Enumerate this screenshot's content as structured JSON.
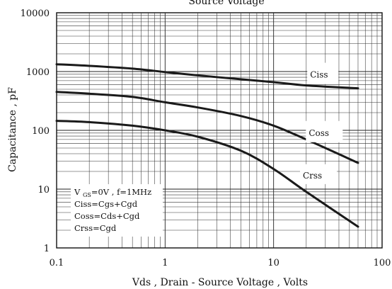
{
  "chart_data": {
    "type": "line",
    "title": "Source Voltage",
    "xlabel": "Vds , Drain - Source Voltage , Volts",
    "ylabel": "Capacitance , pF",
    "xscale": "log",
    "yscale": "log",
    "xlim": [
      0.1,
      100
    ],
    "ylim": [
      1,
      10000
    ],
    "grid": true,
    "x_tick_labels": [
      "0.1",
      "1",
      "10",
      "100"
    ],
    "y_tick_labels": [
      "1",
      "10",
      "100",
      "1000",
      "10000"
    ],
    "series": [
      {
        "name": "Ciss",
        "x": [
          0.1,
          0.2,
          0.5,
          1,
          2,
          5,
          10,
          20,
          60
        ],
        "values": [
          1330,
          1250,
          1120,
          980,
          860,
          740,
          660,
          580,
          520
        ]
      },
      {
        "name": "Coss",
        "x": [
          0.1,
          0.2,
          0.5,
          1,
          2,
          5,
          10,
          20,
          60
        ],
        "values": [
          450,
          420,
          370,
          300,
          245,
          175,
          120,
          70,
          28
        ]
      },
      {
        "name": "Crss",
        "x": [
          0.1,
          0.2,
          0.5,
          1,
          2,
          5,
          10,
          20,
          60
        ],
        "values": [
          145,
          138,
          120,
          100,
          78,
          45,
          22,
          9,
          2.3
        ]
      }
    ],
    "legend": {
      "placement": "bottom-left",
      "lines": [
        "V_GS=0V , f=1MHz",
        "Ciss=Cgs+Cgd",
        "Coss=Cds+Cgd",
        "Crss=Cgd"
      ]
    }
  }
}
